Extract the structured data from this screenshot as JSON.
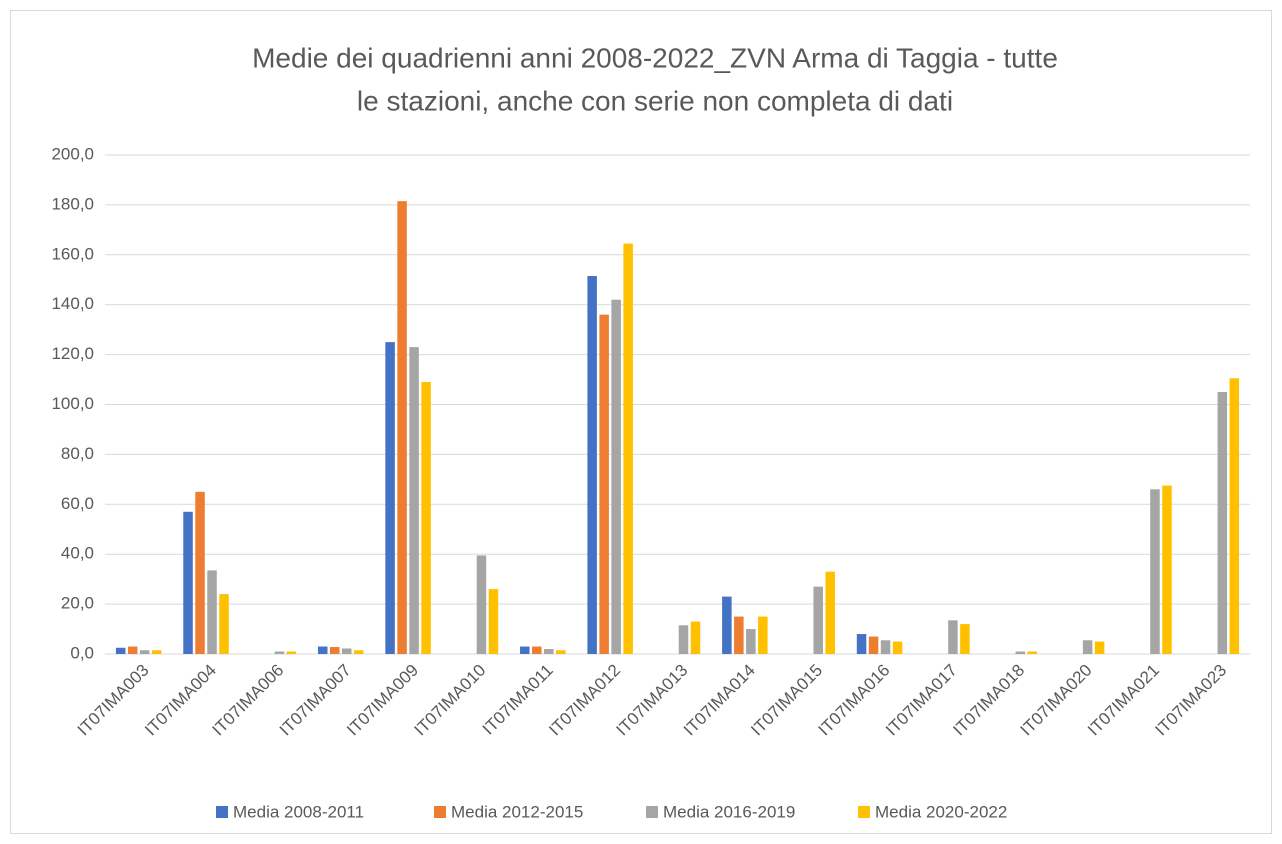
{
  "chart_data": {
    "type": "bar",
    "title_lines": [
      "Medie dei quadrienni anni 2008-2022_ZVN Arma di Taggia - tutte",
      "le stazioni, anche con serie non completa di dati"
    ],
    "categories": [
      "IT07IMA003",
      "IT07IMA004",
      "IT07IMA006",
      "IT07IMA007",
      "IT07IMA009",
      "IT07IMA010",
      "IT07IMA011",
      "IT07IMA012",
      "IT07IMA013",
      "IT07IMA014",
      "IT07IMA015",
      "IT07IMA016",
      "IT07IMA017",
      "IT07IMA018",
      "IT07IMA020",
      "IT07IMA021",
      "IT07IMA023"
    ],
    "series": [
      {
        "name": "Media 2008-2011",
        "color": "#4472c4",
        "values": [
          2.5,
          57,
          null,
          3,
          125,
          null,
          3,
          151.5,
          null,
          23,
          null,
          8,
          null,
          null,
          null,
          null,
          null
        ]
      },
      {
        "name": "Media 2012-2015",
        "color": "#ed7d31",
        "values": [
          3,
          65,
          null,
          2.8,
          181.5,
          null,
          3,
          136,
          null,
          15,
          null,
          7,
          null,
          null,
          null,
          null,
          null
        ]
      },
      {
        "name": "Media 2016-2019",
        "color": "#a5a5a5",
        "values": [
          1.5,
          33.5,
          1,
          2.2,
          123,
          39.5,
          2,
          142,
          11.5,
          10,
          27,
          5.5,
          13.5,
          1,
          5.5,
          66,
          105
        ]
      },
      {
        "name": "Media 2020-2022",
        "color": "#ffc000",
        "values": [
          1.5,
          24,
          1,
          1.5,
          109,
          26,
          1.5,
          164.5,
          13,
          15,
          33,
          5,
          12,
          1,
          5,
          67.5,
          110.5
        ]
      }
    ],
    "ylim": [
      0,
      200
    ],
    "yticks": [
      {
        "value": 0,
        "label": "0,0"
      },
      {
        "value": 20,
        "label": "20,0"
      },
      {
        "value": 40,
        "label": "40,0"
      },
      {
        "value": 60,
        "label": "60,0"
      },
      {
        "value": 80,
        "label": "80,0"
      },
      {
        "value": 100,
        "label": "100,0"
      },
      {
        "value": 120,
        "label": "120,0"
      },
      {
        "value": 140,
        "label": "140,0"
      },
      {
        "value": 160,
        "label": "160,0"
      },
      {
        "value": 180,
        "label": "180,0"
      },
      {
        "value": 200,
        "label": "200,0"
      }
    ],
    "grid": true
  }
}
